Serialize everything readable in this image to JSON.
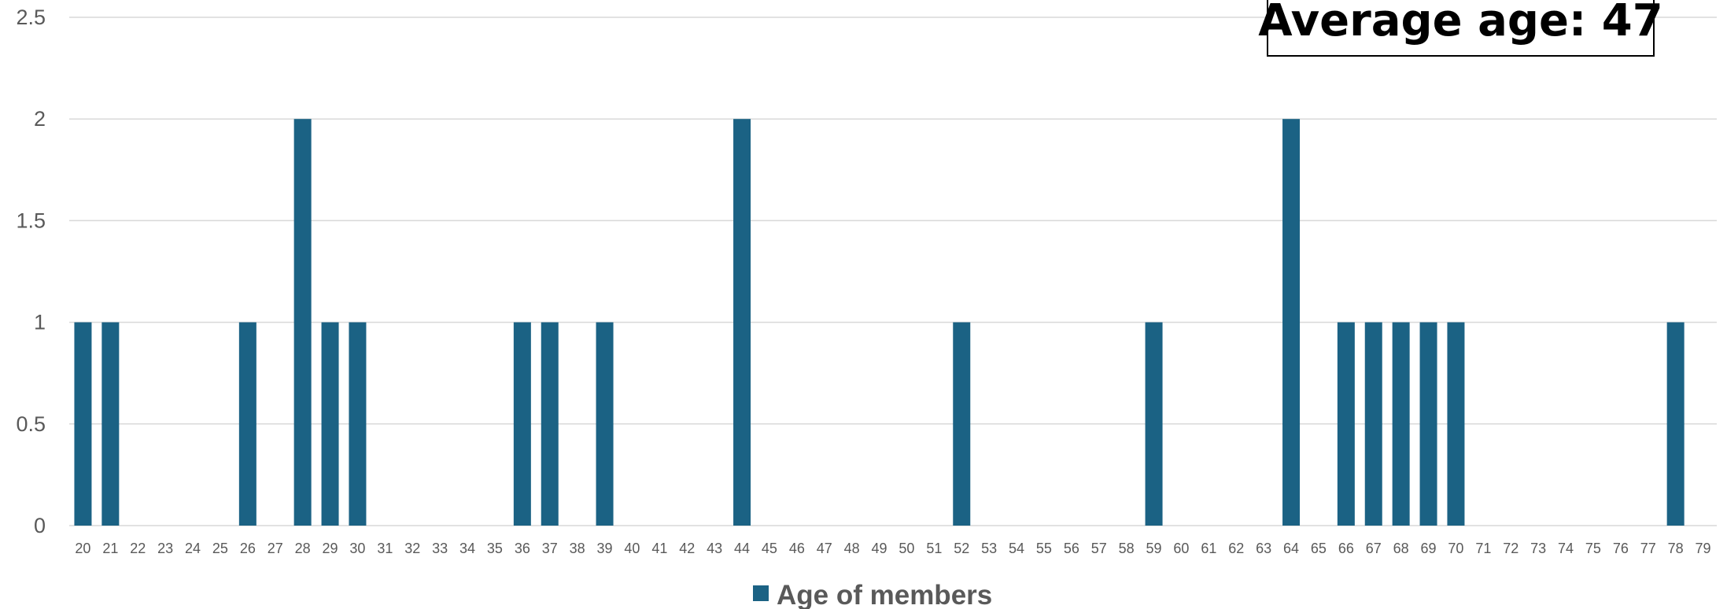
{
  "chart_data": {
    "type": "bar",
    "categories": [
      "20",
      "21",
      "22",
      "23",
      "24",
      "25",
      "26",
      "27",
      "28",
      "29",
      "30",
      "31",
      "32",
      "33",
      "34",
      "35",
      "36",
      "37",
      "38",
      "39",
      "40",
      "41",
      "42",
      "43",
      "44",
      "45",
      "46",
      "47",
      "48",
      "49",
      "50",
      "51",
      "52",
      "53",
      "54",
      "55",
      "56",
      "57",
      "58",
      "59",
      "60",
      "61",
      "62",
      "63",
      "64",
      "65",
      "66",
      "67",
      "68",
      "69",
      "70",
      "71",
      "72",
      "73",
      "74",
      "75",
      "76",
      "77",
      "78",
      "79"
    ],
    "series": [
      {
        "name": "Age of members",
        "values": [
          1,
          1,
          0,
          0,
          0,
          0,
          1,
          0,
          2,
          1,
          1,
          0,
          0,
          0,
          0,
          0,
          1,
          1,
          0,
          1,
          0,
          0,
          0,
          0,
          2,
          0,
          0,
          0,
          0,
          0,
          0,
          0,
          1,
          0,
          0,
          0,
          0,
          0,
          0,
          1,
          0,
          0,
          0,
          0,
          2,
          0,
          1,
          1,
          1,
          1,
          1,
          0,
          0,
          0,
          0,
          0,
          0,
          0,
          1,
          0
        ]
      }
    ],
    "yticks": [
      "0",
      "0.5",
      "1",
      "1.5",
      "2",
      "2.5"
    ],
    "ylim": [
      0,
      2.5
    ],
    "grid": true,
    "legend": "bottom-center",
    "annotation": "Average age: 47",
    "colors": {
      "bar": "#1b6284",
      "grid": "#d9d9d9",
      "text": "#595959"
    }
  }
}
